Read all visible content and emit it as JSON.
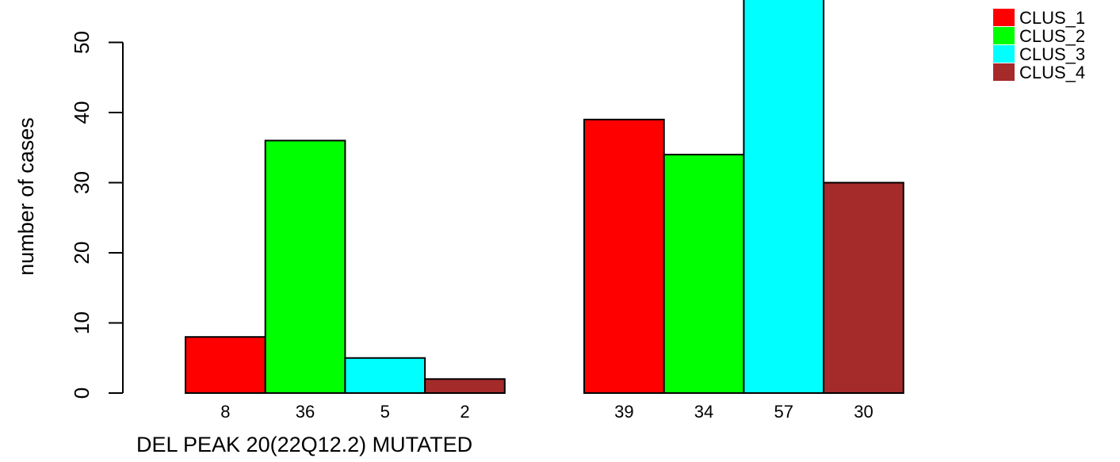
{
  "chart_data": {
    "type": "bar",
    "title": "",
    "xlabel": "DEL PEAK 20(22Q12.2) MUTATED",
    "ylabel": "number of cases",
    "ylim": [
      0,
      57
    ],
    "yticks": [
      0,
      10,
      20,
      30,
      40,
      50
    ],
    "grid": false,
    "legend_position": "top-right",
    "groups": [
      {
        "values": [
          8,
          36,
          5,
          2
        ],
        "labels": [
          "8",
          "36",
          "5",
          "2"
        ]
      },
      {
        "values": [
          39,
          34,
          57,
          30
        ],
        "labels": [
          "39",
          "34",
          "57",
          "30"
        ]
      }
    ],
    "series": [
      {
        "name": "CLUS_1",
        "color": "#ff0000"
      },
      {
        "name": "CLUS_2",
        "color": "#00ff00"
      },
      {
        "name": "CLUS_3",
        "color": "#00ffff"
      },
      {
        "name": "CLUS_4",
        "color": "#a52a2a"
      }
    ]
  }
}
